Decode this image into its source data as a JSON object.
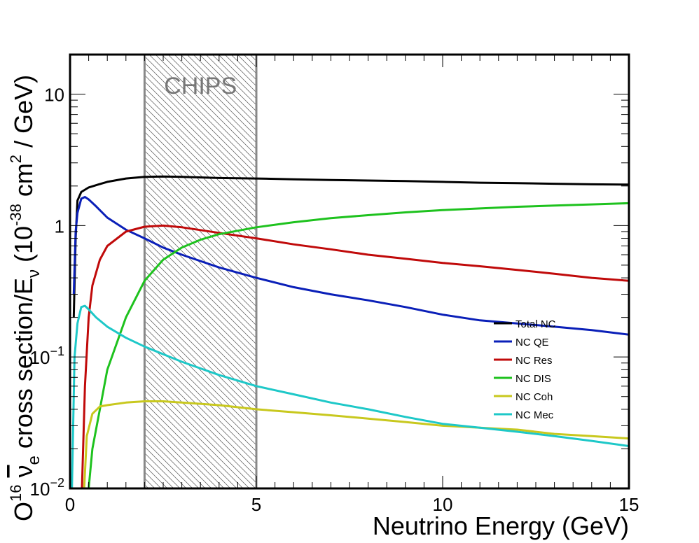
{
  "chart_data": {
    "type": "line",
    "xlabel": "Neutrino Energy (GeV)",
    "ylabel": {
      "prefix_sup": "16",
      "prefix": "O",
      "nu": "ν",
      "nu_sub": "e",
      "middle": " cross section/E",
      "e_sub": "ν",
      "unit_open": " (10",
      "unit_exp": "-38",
      "unit_mid": " cm",
      "unit_exp2": "2",
      "unit_close": " / GeV)"
    },
    "yscale": "log",
    "xlim": [
      0,
      15
    ],
    "ylim": [
      0.01,
      20
    ],
    "x_ticks": [
      {
        "value": 0,
        "label": "0"
      },
      {
        "value": 5,
        "label": "5"
      },
      {
        "value": 10,
        "label": "10"
      },
      {
        "value": 15,
        "label": "15"
      }
    ],
    "y_ticks": [
      {
        "value": 0.01,
        "base": "10",
        "exp": "−2"
      },
      {
        "value": 0.1,
        "base": "10",
        "exp": "−1"
      },
      {
        "value": 1,
        "base": "1",
        "exp": ""
      },
      {
        "value": 10,
        "base": "10",
        "exp": ""
      }
    ],
    "band": {
      "x_range": [
        2,
        5
      ],
      "label": "CHIPS",
      "color": "#888888"
    },
    "legend_position": "lower-right",
    "series": [
      {
        "name": "Total NC",
        "color": "#000000",
        "points": [
          [
            0.1,
            0.2
          ],
          [
            0.15,
            0.8
          ],
          [
            0.2,
            1.55
          ],
          [
            0.3,
            1.8
          ],
          [
            0.5,
            1.95
          ],
          [
            0.75,
            2.05
          ],
          [
            1,
            2.15
          ],
          [
            1.5,
            2.28
          ],
          [
            2,
            2.35
          ],
          [
            2.5,
            2.36
          ],
          [
            3,
            2.35
          ],
          [
            4,
            2.3
          ],
          [
            5,
            2.28
          ],
          [
            6,
            2.25
          ],
          [
            7,
            2.22
          ],
          [
            8,
            2.2
          ],
          [
            9,
            2.18
          ],
          [
            10,
            2.15
          ],
          [
            11,
            2.12
          ],
          [
            12,
            2.1
          ],
          [
            13,
            2.08
          ],
          [
            14,
            2.06
          ],
          [
            15,
            2.05
          ]
        ]
      },
      {
        "name": "NC QE",
        "color": "#0a1fb8",
        "points": [
          [
            0.1,
            0.3
          ],
          [
            0.15,
            0.9
          ],
          [
            0.2,
            1.25
          ],
          [
            0.3,
            1.6
          ],
          [
            0.4,
            1.65
          ],
          [
            0.5,
            1.58
          ],
          [
            0.7,
            1.4
          ],
          [
            1,
            1.15
          ],
          [
            1.5,
            0.93
          ],
          [
            2,
            0.8
          ],
          [
            2.5,
            0.68
          ],
          [
            3,
            0.6
          ],
          [
            4,
            0.48
          ],
          [
            5,
            0.4
          ],
          [
            6,
            0.34
          ],
          [
            7,
            0.3
          ],
          [
            8,
            0.27
          ],
          [
            9,
            0.24
          ],
          [
            10,
            0.21
          ],
          [
            11,
            0.19
          ],
          [
            12,
            0.18
          ],
          [
            13,
            0.17
          ],
          [
            14,
            0.16
          ],
          [
            15,
            0.148
          ]
        ]
      },
      {
        "name": "NC Res",
        "color": "#c00a0a",
        "points": [
          [
            0.32,
            0.01
          ],
          [
            0.4,
            0.06
          ],
          [
            0.5,
            0.2
          ],
          [
            0.6,
            0.35
          ],
          [
            0.8,
            0.55
          ],
          [
            1,
            0.7
          ],
          [
            1.5,
            0.9
          ],
          [
            2,
            0.98
          ],
          [
            2.5,
            1.0
          ],
          [
            3,
            0.97
          ],
          [
            4,
            0.88
          ],
          [
            5,
            0.8
          ],
          [
            6,
            0.72
          ],
          [
            7,
            0.66
          ],
          [
            8,
            0.6
          ],
          [
            9,
            0.56
          ],
          [
            10,
            0.52
          ],
          [
            11,
            0.49
          ],
          [
            12,
            0.46
          ],
          [
            13,
            0.43
          ],
          [
            14,
            0.4
          ],
          [
            15,
            0.38
          ]
        ]
      },
      {
        "name": "NC DIS",
        "color": "#1ec21e",
        "points": [
          [
            0.5,
            0.01
          ],
          [
            0.6,
            0.02
          ],
          [
            0.8,
            0.04
          ],
          [
            1,
            0.08
          ],
          [
            1.5,
            0.2
          ],
          [
            2,
            0.38
          ],
          [
            2.5,
            0.55
          ],
          [
            3,
            0.68
          ],
          [
            3.5,
            0.78
          ],
          [
            4,
            0.86
          ],
          [
            5,
            0.97
          ],
          [
            6,
            1.06
          ],
          [
            7,
            1.14
          ],
          [
            8,
            1.2
          ],
          [
            9,
            1.26
          ],
          [
            10,
            1.31
          ],
          [
            11,
            1.35
          ],
          [
            12,
            1.39
          ],
          [
            13,
            1.42
          ],
          [
            14,
            1.45
          ],
          [
            15,
            1.48
          ]
        ]
      },
      {
        "name": "NC Coh",
        "color": "#c8c81e",
        "points": [
          [
            0.38,
            0.01
          ],
          [
            0.45,
            0.025
          ],
          [
            0.6,
            0.037
          ],
          [
            0.8,
            0.042
          ],
          [
            1,
            0.043
          ],
          [
            1.5,
            0.045
          ],
          [
            2,
            0.046
          ],
          [
            2.5,
            0.046
          ],
          [
            3,
            0.045
          ],
          [
            4,
            0.043
          ],
          [
            5,
            0.04
          ],
          [
            6,
            0.038
          ],
          [
            7,
            0.036
          ],
          [
            8,
            0.034
          ],
          [
            9,
            0.032
          ],
          [
            10,
            0.03
          ],
          [
            11,
            0.029
          ],
          [
            12,
            0.028
          ],
          [
            13,
            0.026
          ],
          [
            14,
            0.025
          ],
          [
            15,
            0.024
          ]
        ]
      },
      {
        "name": "NC Mec",
        "color": "#1ec8c8",
        "points": [
          [
            0.05,
            0.01
          ],
          [
            0.12,
            0.1
          ],
          [
            0.2,
            0.18
          ],
          [
            0.3,
            0.24
          ],
          [
            0.4,
            0.245
          ],
          [
            0.5,
            0.23
          ],
          [
            0.7,
            0.2
          ],
          [
            1,
            0.17
          ],
          [
            1.5,
            0.14
          ],
          [
            2,
            0.12
          ],
          [
            2.5,
            0.105
          ],
          [
            3,
            0.092
          ],
          [
            4,
            0.073
          ],
          [
            5,
            0.06
          ],
          [
            6,
            0.052
          ],
          [
            7,
            0.045
          ],
          [
            8,
            0.04
          ],
          [
            9,
            0.035
          ],
          [
            10,
            0.031
          ],
          [
            11,
            0.029
          ],
          [
            12,
            0.027
          ],
          [
            13,
            0.025
          ],
          [
            14,
            0.023
          ],
          [
            15,
            0.021
          ]
        ]
      }
    ]
  }
}
